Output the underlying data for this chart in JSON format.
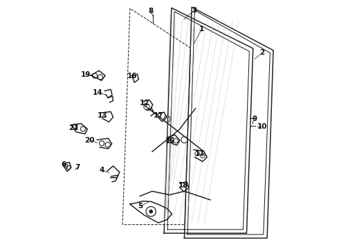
{
  "background_color": "#ffffff",
  "figsize": [
    4.9,
    3.6
  ],
  "dpi": 100,
  "line_color": "#222222",
  "label_fontsize": 7.5,
  "label_color": "#111111",
  "label_fontweight": "bold",
  "label_positions": {
    "1": [
      0.63,
      0.885,
      0.6,
      0.83
    ],
    "2": [
      0.875,
      0.79,
      0.845,
      0.765
    ],
    "3": [
      0.6,
      0.962,
      0.558,
      0.925
    ],
    "4": [
      0.225,
      0.315,
      0.255,
      0.305
    ],
    "5": [
      0.382,
      0.17,
      0.415,
      0.185
    ],
    "6": [
      0.072,
      0.337,
      0.085,
      0.328
    ],
    "7": [
      0.128,
      0.327,
      0.118,
      0.318
    ],
    "8": [
      0.425,
      0.96,
      0.432,
      0.938
    ],
    "9": [
      0.845,
      0.522,
      0.838,
      0.52
    ],
    "10": [
      0.876,
      0.492,
      0.856,
      0.49
    ],
    "11": [
      0.622,
      0.382,
      0.612,
      0.375
    ],
    "12": [
      0.398,
      0.588,
      0.408,
      0.576
    ],
    "13": [
      0.228,
      0.536,
      0.245,
      0.528
    ],
    "14": [
      0.21,
      0.628,
      0.238,
      0.622
    ],
    "15": [
      0.503,
      0.432,
      0.51,
      0.428
    ],
    "16": [
      0.35,
      0.697,
      0.36,
      0.688
    ],
    "17": [
      0.455,
      0.535,
      0.465,
      0.528
    ],
    "18": [
      0.556,
      0.255,
      0.558,
      0.245
    ],
    "19": [
      0.16,
      0.702,
      0.188,
      0.7
    ],
    "20": [
      0.176,
      0.437,
      0.208,
      0.426
    ],
    "21": [
      0.112,
      0.487,
      0.126,
      0.483
    ]
  }
}
